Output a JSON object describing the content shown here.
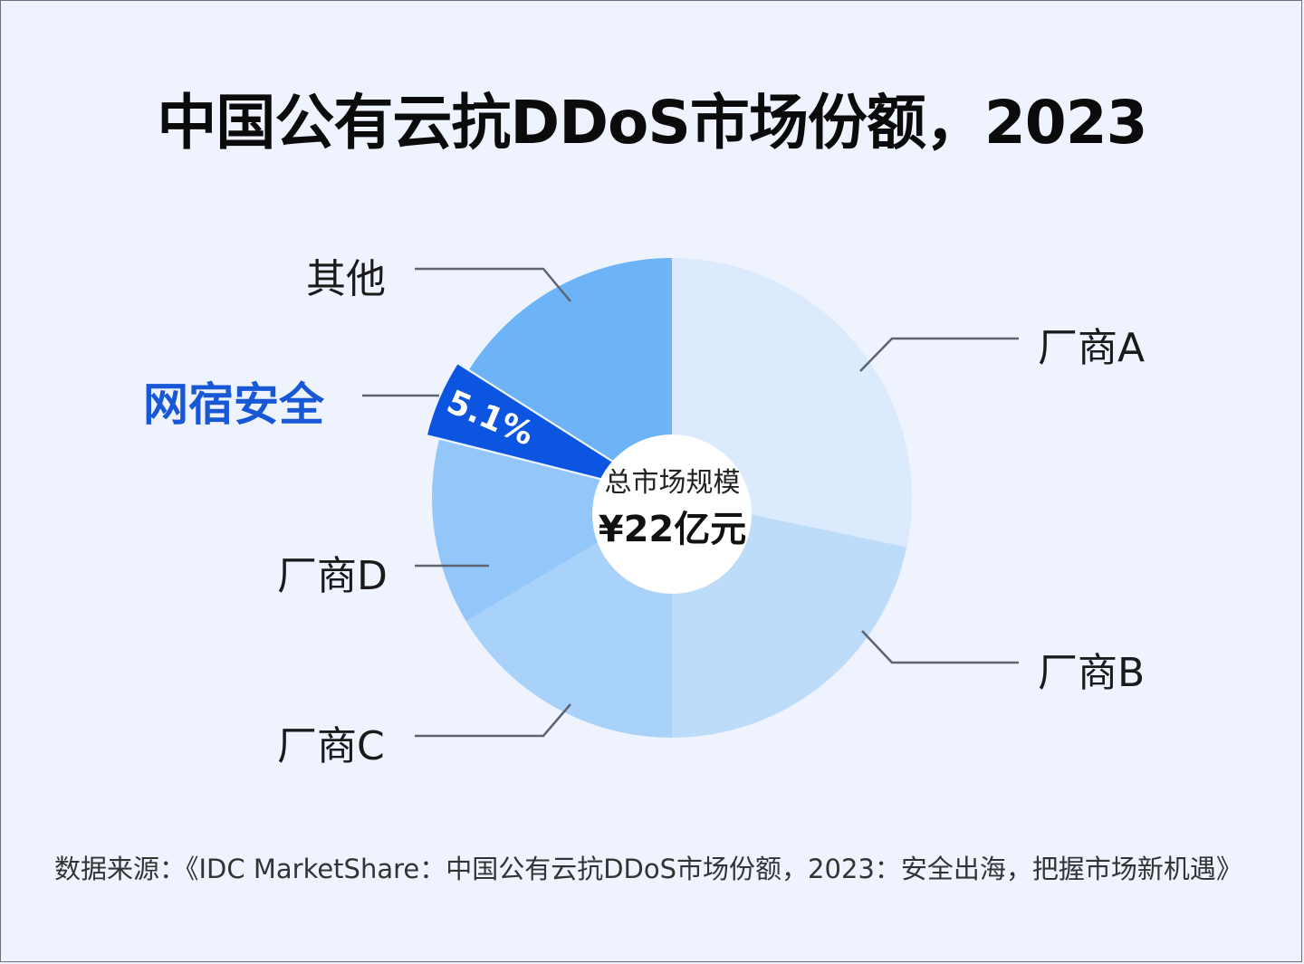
{
  "title": "中国公有云抗DDoS市场份额，2023",
  "center": {
    "caption": "总市场规模",
    "value": "¥22亿元"
  },
  "highlight": {
    "label": "网宿安全",
    "value_label": "5.1%",
    "color": "#0b55e0",
    "label_color": "#1858d6"
  },
  "source": "数据来源：《IDC MarketShare：中国公有云抗DDoS市场份额，2023：安全出海，把握市场新机遇》",
  "chart_data": {
    "type": "pie",
    "title": "中国公有云抗DDoS市场份额，2023",
    "subtitle": "总市场规模 ¥22亿元",
    "donut": true,
    "start_angle": "12 o'clock, clockwise",
    "categories": [
      "厂商A",
      "厂商B",
      "厂商C",
      "厂商D",
      "网宿安全",
      "其他"
    ],
    "values": [
      28.3,
      21.7,
      16.4,
      12.5,
      5.1,
      16.0
    ],
    "value_labels": [
      null,
      null,
      null,
      null,
      "5.1%",
      null
    ],
    "colors": [
      "#dbeafc",
      "#bcdcfa",
      "#a9d2fb",
      "#93c6f9",
      "#0b55e0",
      "#6cb4f7"
    ],
    "exploded": [
      "网宿安全"
    ],
    "total": "¥22亿元",
    "note": "Only 网宿安全 share (5.1%) is labeled; other shares estimated from slice angles."
  }
}
